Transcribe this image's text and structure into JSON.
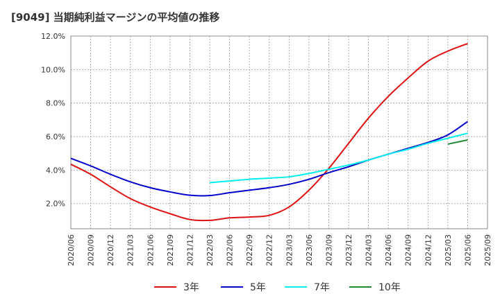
{
  "chart_data": {
    "type": "line",
    "title": "[9049]  当期純利益マージンの平均値の推移",
    "xlabel": "",
    "ylabel": "",
    "ylim": [
      0.5,
      12.0
    ],
    "y_ticks": [
      "2.0%",
      "4.0%",
      "6.0%",
      "8.0%",
      "10.0%",
      "12.0%"
    ],
    "y_tick_values": [
      2,
      4,
      6,
      8,
      10,
      12
    ],
    "categories": [
      "2020/06",
      "2020/09",
      "2020/12",
      "2021/03",
      "2021/06",
      "2021/09",
      "2021/12",
      "2022/03",
      "2022/06",
      "2022/09",
      "2022/12",
      "2023/03",
      "2023/06",
      "2023/09",
      "2023/12",
      "2024/03",
      "2024/06",
      "2024/09",
      "2024/12",
      "2025/03",
      "2025/06",
      "2025/09"
    ],
    "grid": true,
    "legend_position": "bottom",
    "series": [
      {
        "name": "3年",
        "color": "#dd1111",
        "values": [
          4.35,
          3.75,
          3.0,
          2.3,
          1.8,
          1.4,
          1.05,
          1.0,
          1.15,
          1.2,
          1.3,
          1.8,
          2.8,
          4.1,
          5.6,
          7.1,
          8.4,
          9.5,
          10.5,
          11.1,
          11.55,
          null
        ]
      },
      {
        "name": "5年",
        "color": "#0000cc",
        "values": [
          4.7,
          4.25,
          3.75,
          3.3,
          2.95,
          2.7,
          2.5,
          2.48,
          2.65,
          2.8,
          2.95,
          3.15,
          3.45,
          3.85,
          4.2,
          4.6,
          4.95,
          5.3,
          5.65,
          6.1,
          6.9,
          null
        ]
      },
      {
        "name": "7年",
        "color": "#00eeee",
        "values": [
          null,
          null,
          null,
          null,
          null,
          null,
          null,
          3.25,
          3.35,
          3.45,
          3.52,
          3.6,
          3.8,
          4.05,
          4.3,
          4.6,
          4.95,
          5.25,
          5.6,
          5.9,
          6.2,
          null
        ]
      },
      {
        "name": "10年",
        "color": "#228833",
        "values": [
          null,
          null,
          null,
          null,
          null,
          null,
          null,
          null,
          null,
          null,
          null,
          null,
          null,
          null,
          null,
          null,
          null,
          null,
          null,
          5.55,
          5.8,
          null
        ]
      }
    ]
  }
}
